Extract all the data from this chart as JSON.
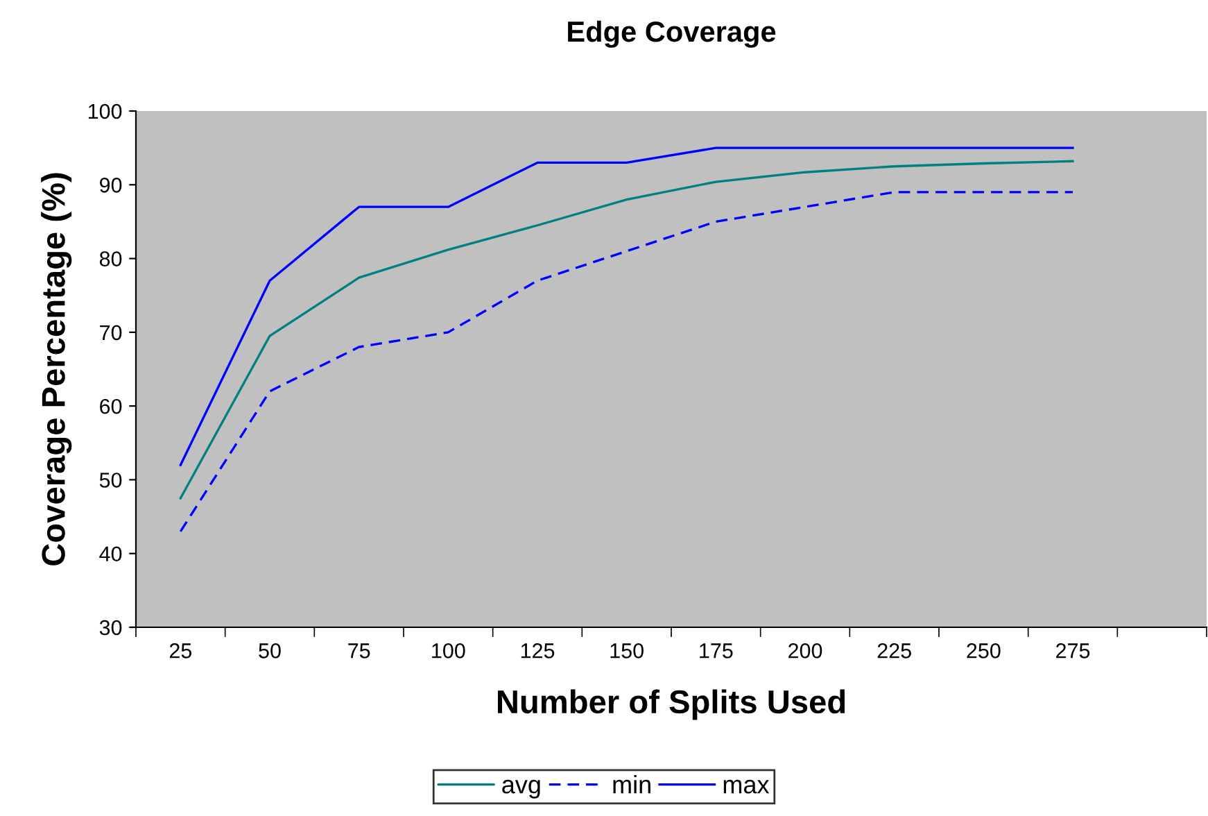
{
  "chart_data": {
    "type": "line",
    "title": "Edge Coverage",
    "xlabel": "Number of Splits Used",
    "ylabel": "Coverage Percentage (%)",
    "categories": [
      "25",
      "50",
      "75",
      "100",
      "125",
      "150",
      "175",
      "200",
      "225",
      "250",
      "275",
      null
    ],
    "series": [
      {
        "name": "avg",
        "color": "#008080",
        "line_style": "solid",
        "values": [
          47.5,
          69.5,
          77.4,
          81.2,
          84.5,
          88,
          90.4,
          91.7,
          92.5,
          92.9,
          93.2,
          null
        ]
      },
      {
        "name": "min",
        "color": "#0000ff",
        "line_style": "dashed",
        "values": [
          43,
          62,
          68,
          70,
          77,
          81,
          85,
          87,
          89,
          89,
          89,
          null
        ]
      },
      {
        "name": "max",
        "color": "#0000ff",
        "line_style": "solid",
        "values": [
          52,
          77,
          87,
          87,
          93,
          93,
          95,
          95,
          95,
          95,
          95,
          null
        ]
      }
    ],
    "ylim": [
      30,
      100
    ],
    "yticks": [
      30,
      40,
      50,
      60,
      70,
      80,
      90,
      100
    ],
    "grid": false,
    "legend": "bottom",
    "marker": "none"
  }
}
